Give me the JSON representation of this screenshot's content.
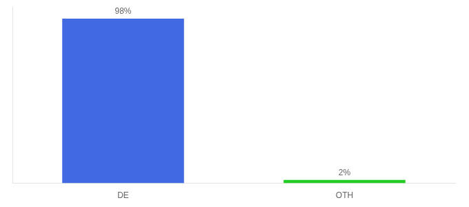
{
  "chart_data": {
    "type": "bar",
    "categories": [
      "DE",
      "OTH"
    ],
    "values": [
      98,
      2
    ],
    "value_labels": [
      "98%",
      "2%"
    ],
    "colors": [
      "#4169e1",
      "#22cc22"
    ],
    "ylim": [
      0,
      105
    ],
    "data_labels": true,
    "tick_labels": "x",
    "grid": false
  }
}
